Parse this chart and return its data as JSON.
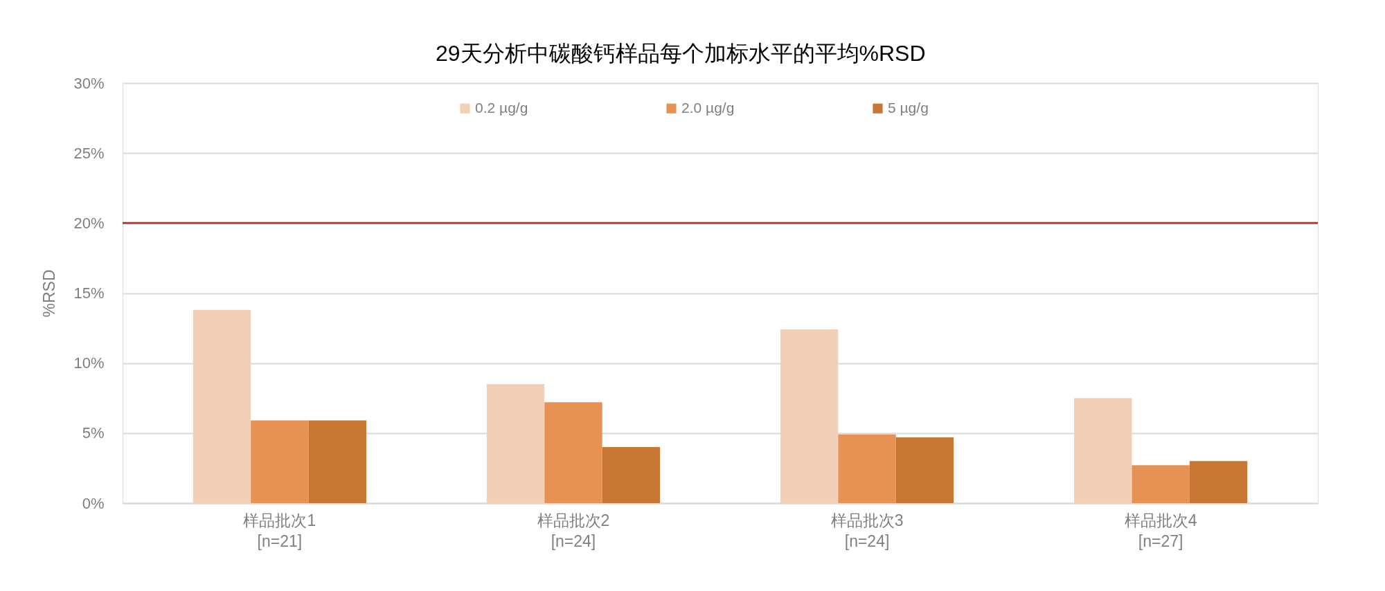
{
  "chart_data": {
    "type": "bar",
    "title": "29天分析中碳酸钙样品每个加标水平的平均%RSD",
    "ylabel": "%RSD",
    "categories": [
      "样品批次1\n[n=21]",
      "样品批次2\n[n=24]",
      "样品批次3\n[n=24]",
      "样品批次4\n[n=27]"
    ],
    "series": [
      {
        "name": "0.2 µg/g",
        "color": "#f2cfb7",
        "values": [
          13.8,
          8.5,
          12.4,
          7.5
        ]
      },
      {
        "name": "2.0 µg/g",
        "color": "#e69254",
        "values": [
          5.9,
          7.2,
          4.9,
          2.7
        ]
      },
      {
        "name": "5 µg/g",
        "color": "#c57733",
        "values": [
          5.9,
          4.0,
          4.7,
          3.0
        ]
      }
    ],
    "ylim": [
      0,
      30
    ],
    "yticks": [
      {
        "value": 0,
        "label": "0%"
      },
      {
        "value": 5,
        "label": "5%"
      },
      {
        "value": 10,
        "label": "10%"
      },
      {
        "value": 15,
        "label": "15%"
      },
      {
        "value": 20,
        "label": "20%"
      },
      {
        "value": 25,
        "label": "25%"
      },
      {
        "value": 30,
        "label": "30%"
      }
    ],
    "ref_lines": [
      {
        "axis": "y",
        "value": 20,
        "color": "#c0392b",
        "line_style": "solid"
      }
    ],
    "grid": "y",
    "legend": "top"
  }
}
